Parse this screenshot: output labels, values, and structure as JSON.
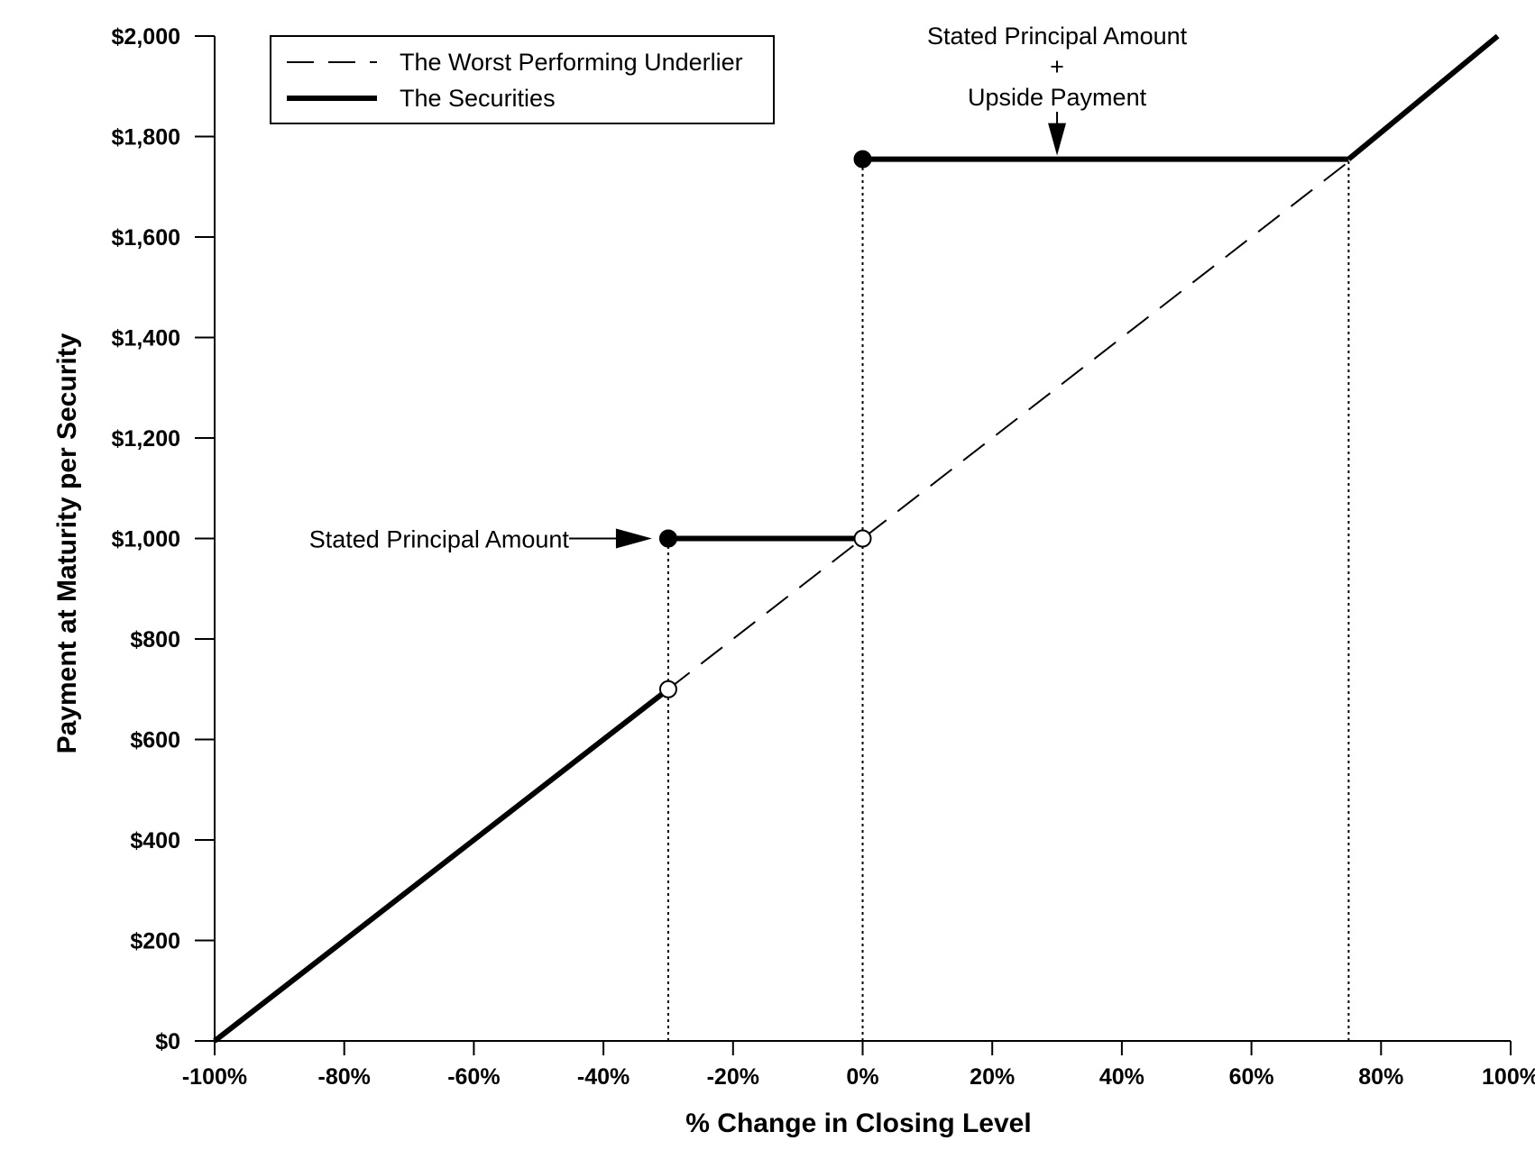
{
  "chart_data": {
    "type": "line",
    "xlabel": "% Change in Closing Level",
    "ylabel": "Payment at Maturity per Security",
    "xlim": [
      -100,
      100
    ],
    "ylim": [
      0,
      2000
    ],
    "x_ticks": [
      -100,
      -80,
      -60,
      -40,
      -20,
      0,
      20,
      40,
      60,
      80,
      100
    ],
    "x_tick_labels": [
      "-100%",
      "-80%",
      "-60%",
      "-40%",
      "-20%",
      "0%",
      "20%",
      "40%",
      "60%",
      "80%",
      "100%"
    ],
    "y_ticks": [
      0,
      200,
      400,
      600,
      800,
      1000,
      1200,
      1400,
      1600,
      1800,
      2000
    ],
    "y_tick_labels": [
      "$0",
      "$200",
      "$400",
      "$600",
      "$800",
      "$1,000",
      "$1,200",
      "$1,400",
      "$1,600",
      "$1,800",
      "$2,000"
    ],
    "grid": false,
    "legend": {
      "placement": "top-left",
      "entries": [
        "The Worst Performing Underlier",
        "The Securities"
      ]
    },
    "series": [
      {
        "name": "The Worst Performing Underlier",
        "style": "dashed",
        "segments": [
          [
            [
              -30,
              700
            ],
            [
              75,
              1750
            ]
          ]
        ]
      },
      {
        "name": "The Securities",
        "style": "solid",
        "segments": [
          [
            [
              -100,
              0
            ],
            [
              -30,
              700
            ]
          ],
          [
            [
              -30,
              1000
            ],
            [
              0,
              1000
            ]
          ],
          [
            [
              0,
              1755
            ],
            [
              75,
              1755
            ]
          ],
          [
            [
              75,
              1755
            ],
            [
              98,
              2000
            ]
          ]
        ]
      }
    ],
    "markers": [
      {
        "x": -30,
        "y": 1000,
        "fill": "filled"
      },
      {
        "x": -30,
        "y": 700,
        "fill": "open"
      },
      {
        "x": 0,
        "y": 1000,
        "fill": "open"
      },
      {
        "x": 0,
        "y": 1755,
        "fill": "filled"
      }
    ],
    "reference_lines": [
      {
        "x": -30,
        "y_from": 0,
        "y_to": 1000
      },
      {
        "x": 0,
        "y_from": 0,
        "y_to": 1755
      },
      {
        "x": 75,
        "y_from": 0,
        "y_to": 1755
      }
    ],
    "annotations": [
      {
        "lines": [
          "Stated Principal Amount"
        ],
        "points_to": {
          "x": -30,
          "y": 1000
        }
      },
      {
        "lines": [
          "Stated Principal Amount",
          "+",
          "Upside Payment"
        ],
        "points_to": {
          "x": 30,
          "y": 1755
        }
      }
    ]
  },
  "colors": {
    "line": "#000000",
    "background": "#ffffff"
  }
}
